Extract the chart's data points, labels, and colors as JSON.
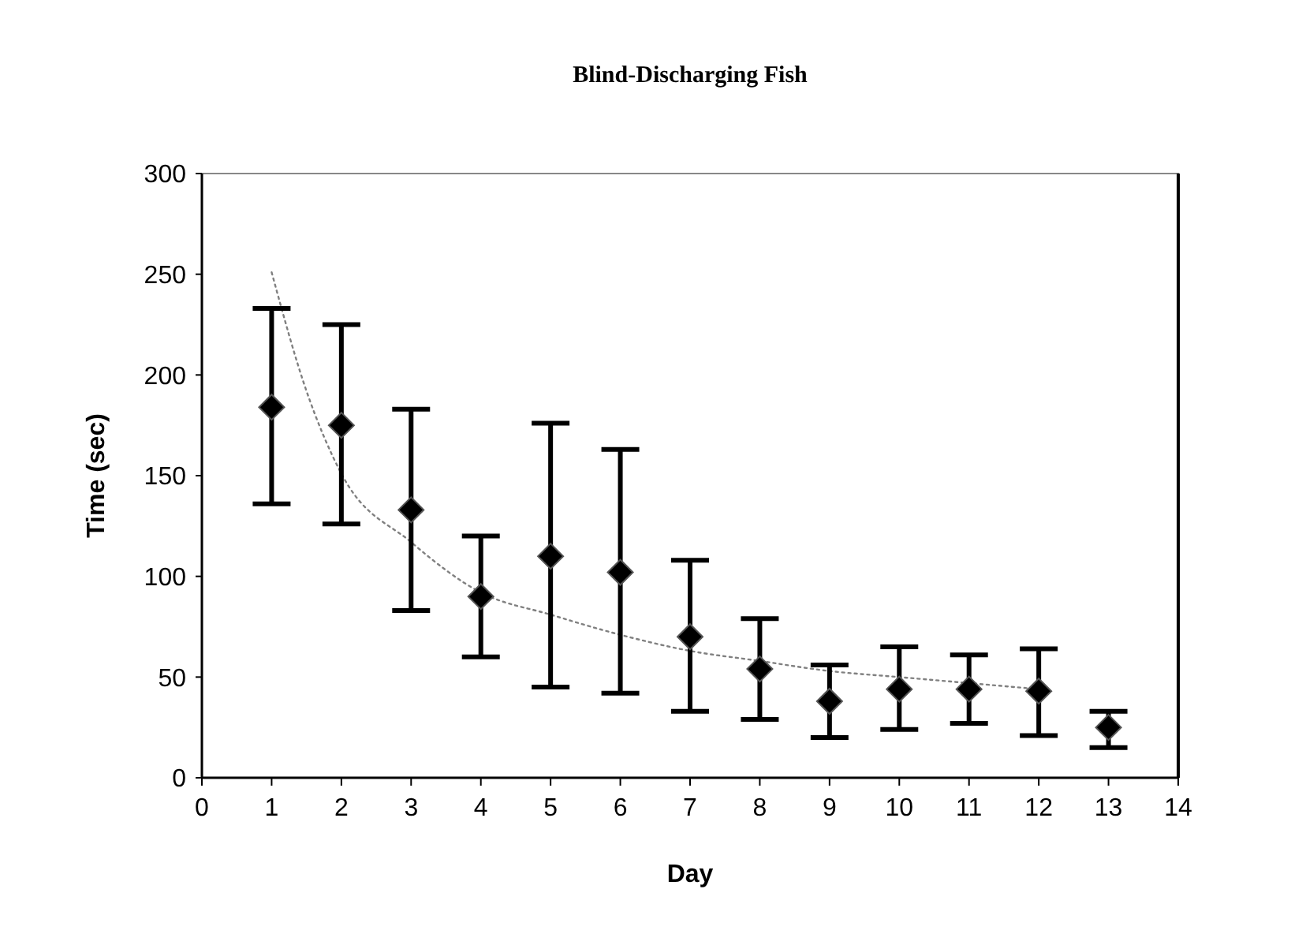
{
  "chart_data": {
    "type": "scatter",
    "title": "Blind-Discharging Fish",
    "xlabel": "Day",
    "ylabel": "Time (sec)",
    "xlim": [
      0,
      14
    ],
    "xticks": [
      0,
      1,
      2,
      3,
      4,
      5,
      6,
      7,
      8,
      9,
      10,
      11,
      12,
      13,
      14
    ],
    "ylim": [
      0,
      300
    ],
    "yticks": [
      0,
      50,
      100,
      150,
      200,
      250,
      300
    ],
    "grid": false,
    "series": [
      {
        "color": "#000000",
        "marker": "diamond",
        "x": [
          1,
          2,
          3,
          4,
          5,
          6,
          7,
          8,
          9,
          10,
          11,
          12,
          13
        ],
        "values": [
          184,
          175,
          133,
          90,
          110,
          102,
          70,
          54,
          38,
          44,
          44,
          43,
          25
        ],
        "errors": [
          [
            136,
            233
          ],
          [
            126,
            225
          ],
          [
            83,
            183
          ],
          [
            60,
            120
          ],
          [
            45,
            176
          ],
          [
            42,
            163
          ],
          [
            33,
            108
          ],
          [
            29,
            79
          ],
          [
            20,
            56
          ],
          [
            24,
            65
          ],
          [
            27,
            61
          ],
          [
            21,
            64
          ],
          [
            15,
            33
          ]
        ]
      },
      {
        "type": "line",
        "color": "#808080",
        "line_style": "dotted",
        "marker": "none",
        "x": [
          1,
          1.5,
          2,
          3,
          4,
          5,
          6,
          7,
          8,
          9,
          10,
          11,
          12
        ],
        "values": [
          251,
          192,
          151,
          117,
          92,
          81,
          71,
          63,
          58,
          53,
          50,
          47,
          44
        ]
      }
    ]
  }
}
